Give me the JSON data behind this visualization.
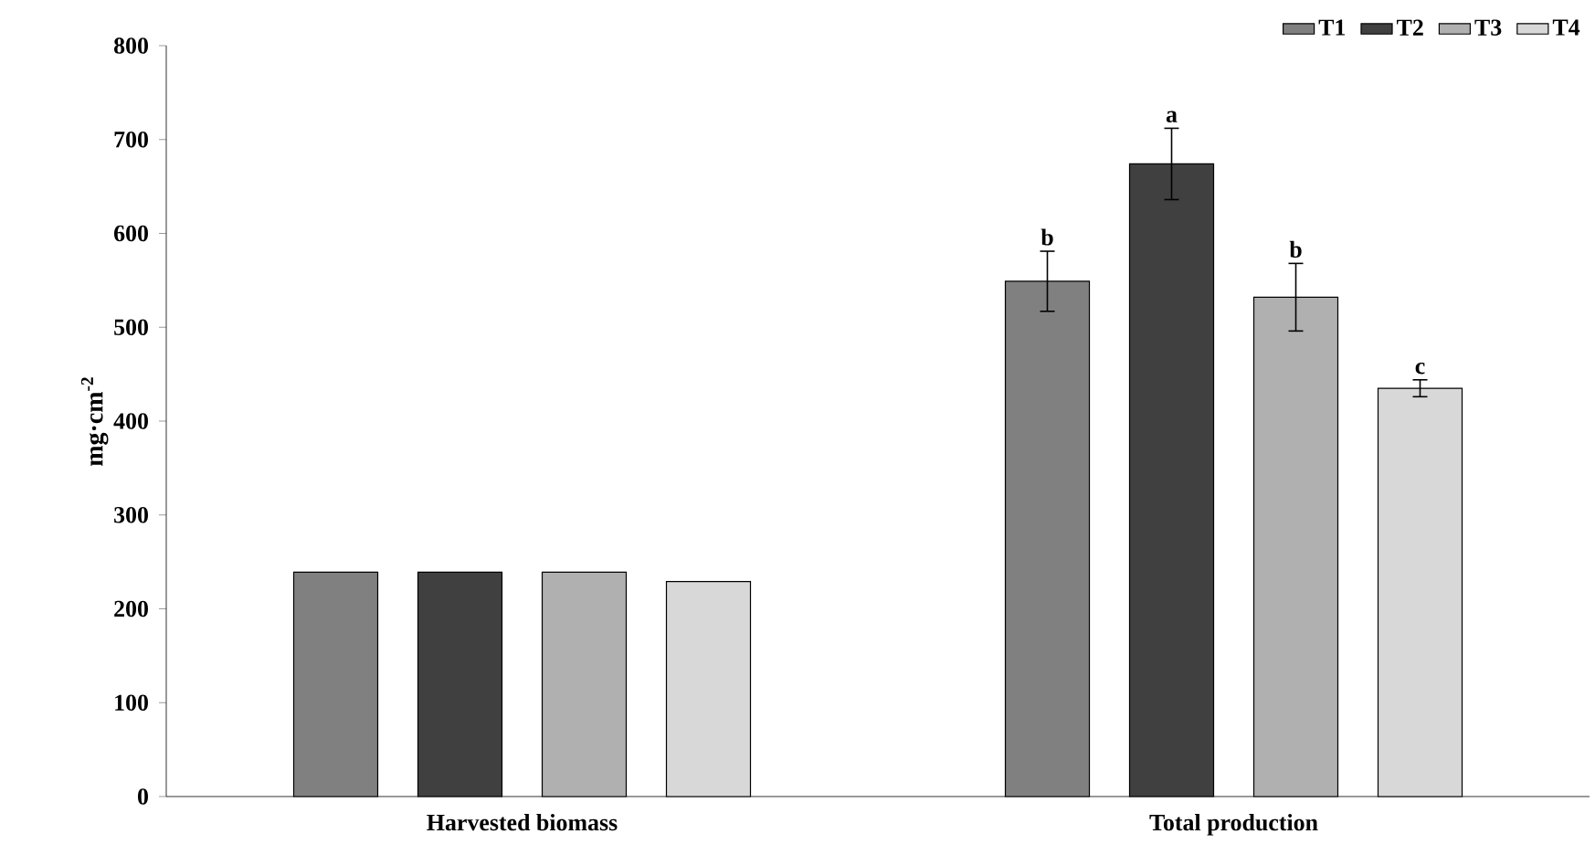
{
  "chart_data": {
    "type": "bar",
    "ylabel": "mg·cm$^{-2}$",
    "categories": [
      "Harvested biomass",
      "Total production"
    ],
    "series": [
      {
        "name": "T1",
        "color": "#808080",
        "values": [
          239,
          549
        ],
        "errors": [
          null,
          32
        ]
      },
      {
        "name": "T2",
        "color": "#404040",
        "values": [
          239,
          674
        ],
        "errors": [
          null,
          38
        ]
      },
      {
        "name": "T3",
        "color": "#b0b0b0",
        "values": [
          239,
          532
        ],
        "errors": [
          null,
          36
        ]
      },
      {
        "name": "T4",
        "color": "#d8d8d8",
        "values": [
          229,
          435
        ],
        "errors": [
          null,
          9
        ]
      }
    ],
    "ylim": [
      0,
      800
    ],
    "yticks": [
      0,
      100,
      200,
      300,
      400,
      500,
      600,
      700,
      800
    ],
    "annotations": [
      "b",
      "a",
      "b",
      "c"
    ],
    "grid": false,
    "legend": "top right"
  }
}
